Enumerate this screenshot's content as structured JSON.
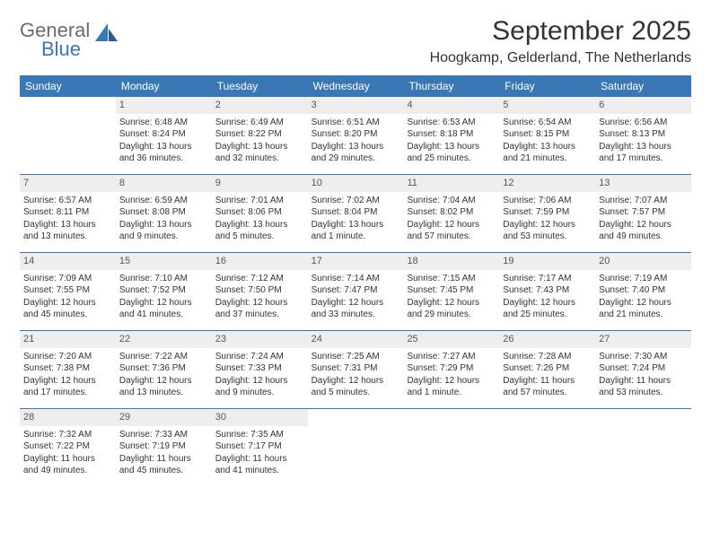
{
  "logo": {
    "general": "General",
    "blue": "Blue"
  },
  "title": "September 2025",
  "subtitle": "Hoogkamp, Gelderland, The Netherlands",
  "colors": {
    "accent": "#3a78b5",
    "header_text": "#ffffff",
    "daynum_bg": "#eeeeee",
    "body_text": "#333333",
    "logo_gray": "#6b6b6b"
  },
  "weekdays": [
    "Sunday",
    "Monday",
    "Tuesday",
    "Wednesday",
    "Thursday",
    "Friday",
    "Saturday"
  ],
  "weeks": [
    [
      null,
      {
        "n": "1",
        "sr": "6:48 AM",
        "ss": "8:24 PM",
        "dl": "13 hours and 36 minutes."
      },
      {
        "n": "2",
        "sr": "6:49 AM",
        "ss": "8:22 PM",
        "dl": "13 hours and 32 minutes."
      },
      {
        "n": "3",
        "sr": "6:51 AM",
        "ss": "8:20 PM",
        "dl": "13 hours and 29 minutes."
      },
      {
        "n": "4",
        "sr": "6:53 AM",
        "ss": "8:18 PM",
        "dl": "13 hours and 25 minutes."
      },
      {
        "n": "5",
        "sr": "6:54 AM",
        "ss": "8:15 PM",
        "dl": "13 hours and 21 minutes."
      },
      {
        "n": "6",
        "sr": "6:56 AM",
        "ss": "8:13 PM",
        "dl": "13 hours and 17 minutes."
      }
    ],
    [
      {
        "n": "7",
        "sr": "6:57 AM",
        "ss": "8:11 PM",
        "dl": "13 hours and 13 minutes."
      },
      {
        "n": "8",
        "sr": "6:59 AM",
        "ss": "8:08 PM",
        "dl": "13 hours and 9 minutes."
      },
      {
        "n": "9",
        "sr": "7:01 AM",
        "ss": "8:06 PM",
        "dl": "13 hours and 5 minutes."
      },
      {
        "n": "10",
        "sr": "7:02 AM",
        "ss": "8:04 PM",
        "dl": "13 hours and 1 minute."
      },
      {
        "n": "11",
        "sr": "7:04 AM",
        "ss": "8:02 PM",
        "dl": "12 hours and 57 minutes."
      },
      {
        "n": "12",
        "sr": "7:06 AM",
        "ss": "7:59 PM",
        "dl": "12 hours and 53 minutes."
      },
      {
        "n": "13",
        "sr": "7:07 AM",
        "ss": "7:57 PM",
        "dl": "12 hours and 49 minutes."
      }
    ],
    [
      {
        "n": "14",
        "sr": "7:09 AM",
        "ss": "7:55 PM",
        "dl": "12 hours and 45 minutes."
      },
      {
        "n": "15",
        "sr": "7:10 AM",
        "ss": "7:52 PM",
        "dl": "12 hours and 41 minutes."
      },
      {
        "n": "16",
        "sr": "7:12 AM",
        "ss": "7:50 PM",
        "dl": "12 hours and 37 minutes."
      },
      {
        "n": "17",
        "sr": "7:14 AM",
        "ss": "7:47 PM",
        "dl": "12 hours and 33 minutes."
      },
      {
        "n": "18",
        "sr": "7:15 AM",
        "ss": "7:45 PM",
        "dl": "12 hours and 29 minutes."
      },
      {
        "n": "19",
        "sr": "7:17 AM",
        "ss": "7:43 PM",
        "dl": "12 hours and 25 minutes."
      },
      {
        "n": "20",
        "sr": "7:19 AM",
        "ss": "7:40 PM",
        "dl": "12 hours and 21 minutes."
      }
    ],
    [
      {
        "n": "21",
        "sr": "7:20 AM",
        "ss": "7:38 PM",
        "dl": "12 hours and 17 minutes."
      },
      {
        "n": "22",
        "sr": "7:22 AM",
        "ss": "7:36 PM",
        "dl": "12 hours and 13 minutes."
      },
      {
        "n": "23",
        "sr": "7:24 AM",
        "ss": "7:33 PM",
        "dl": "12 hours and 9 minutes."
      },
      {
        "n": "24",
        "sr": "7:25 AM",
        "ss": "7:31 PM",
        "dl": "12 hours and 5 minutes."
      },
      {
        "n": "25",
        "sr": "7:27 AM",
        "ss": "7:29 PM",
        "dl": "12 hours and 1 minute."
      },
      {
        "n": "26",
        "sr": "7:28 AM",
        "ss": "7:26 PM",
        "dl": "11 hours and 57 minutes."
      },
      {
        "n": "27",
        "sr": "7:30 AM",
        "ss": "7:24 PM",
        "dl": "11 hours and 53 minutes."
      }
    ],
    [
      {
        "n": "28",
        "sr": "7:32 AM",
        "ss": "7:22 PM",
        "dl": "11 hours and 49 minutes."
      },
      {
        "n": "29",
        "sr": "7:33 AM",
        "ss": "7:19 PM",
        "dl": "11 hours and 45 minutes."
      },
      {
        "n": "30",
        "sr": "7:35 AM",
        "ss": "7:17 PM",
        "dl": "11 hours and 41 minutes."
      },
      null,
      null,
      null,
      null
    ]
  ],
  "labels": {
    "sunrise": "Sunrise:",
    "sunset": "Sunset:",
    "daylight": "Daylight:"
  }
}
